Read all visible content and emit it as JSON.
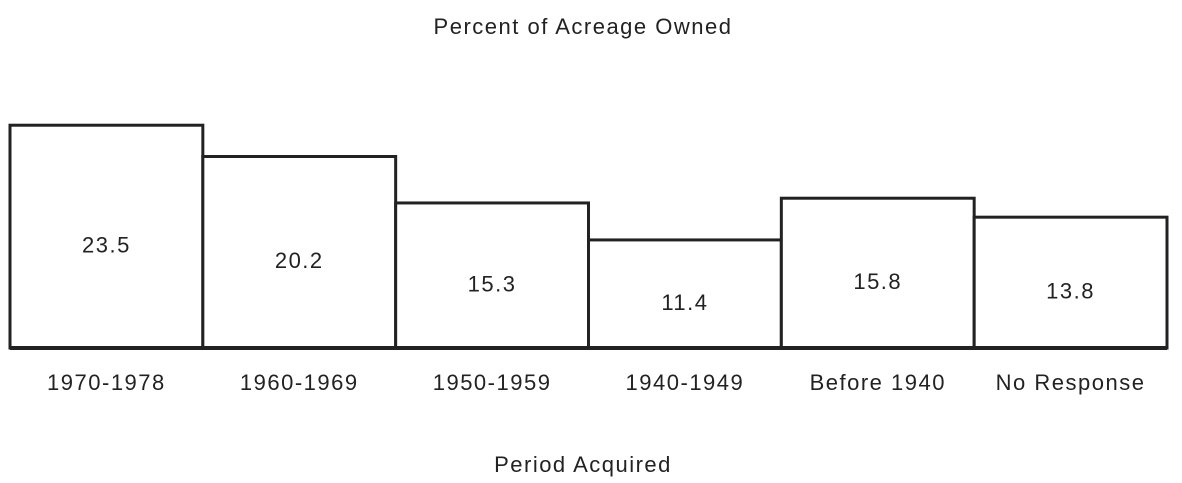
{
  "chart_data": {
    "type": "bar",
    "title": "Percent of Acreage Owned",
    "x_label": "Period Acquired",
    "categories": [
      "1970-1978",
      "1960-1969",
      "1950-1959",
      "1940-1949",
      "Before 1940",
      "No Response"
    ],
    "values": [
      23.5,
      20.2,
      15.3,
      11.4,
      15.8,
      13.8
    ],
    "color": "#ffffff",
    "ylim": [
      0,
      25
    ]
  }
}
